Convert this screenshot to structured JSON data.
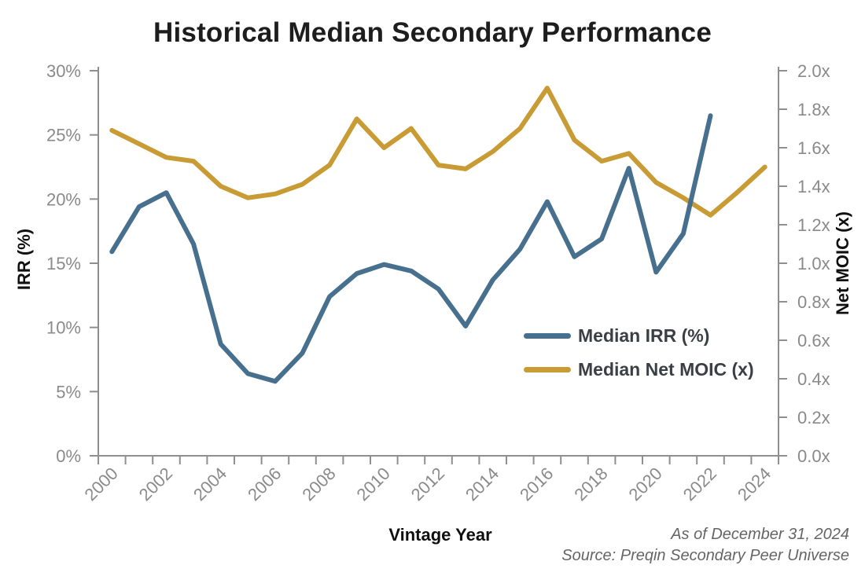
{
  "title": "Historical Median Secondary Performance",
  "colors": {
    "axis": "#8f8f8f",
    "tick_label": "#8a8a8a",
    "irr_line": "#47708e",
    "moic_line": "#c89b35"
  },
  "chart_data": {
    "type": "line",
    "title": "Historical Median Secondary Performance",
    "xlabel": "Vintage Year",
    "ylabel_left": "IRR (%)",
    "ylabel_right": "Net MOIC (x)",
    "grid": false,
    "legend_position": "inside-right",
    "x_categories": [
      "2000",
      "2001",
      "2002",
      "2003",
      "2004",
      "2005",
      "2006",
      "2007",
      "2008",
      "2009",
      "2010",
      "2011",
      "2012",
      "2013",
      "2014",
      "2015",
      "2016",
      "2017",
      "2018",
      "2019",
      "2020",
      "2021",
      "2022",
      "2023",
      "2024"
    ],
    "x_tick_labels": [
      "2000",
      "2002",
      "2004",
      "2006",
      "2008",
      "2010",
      "2012",
      "2014",
      "2016",
      "2018",
      "2020",
      "2022",
      "2024"
    ],
    "left_axis": {
      "min": 0,
      "max": 30,
      "step": 5,
      "tick_labels": [
        "0%",
        "5%",
        "10%",
        "15%",
        "20%",
        "25%",
        "30%"
      ]
    },
    "right_axis": {
      "min": 0,
      "max": 2,
      "step": 0.2,
      "tick_labels": [
        "0.0x",
        "0.2x",
        "0.4x",
        "0.6x",
        "0.8x",
        "1.0x",
        "1.2x",
        "1.4x",
        "1.6x",
        "1.8x",
        "2.0x"
      ]
    },
    "series": [
      {
        "name": "Median IRR (%)",
        "axis": "left",
        "color": "#47708e",
        "values": [
          15.9,
          19.4,
          20.5,
          16.5,
          8.7,
          6.4,
          5.8,
          8.0,
          12.4,
          14.2,
          14.9,
          14.4,
          13.0,
          10.1,
          13.7,
          16.1,
          19.8,
          15.5,
          16.9,
          22.4,
          14.3,
          17.3,
          26.5,
          null,
          null
        ]
      },
      {
        "name": "Median Net MOIC (x)",
        "axis": "right",
        "color": "#c89b35",
        "values": [
          1.69,
          1.62,
          1.55,
          1.53,
          1.4,
          1.34,
          1.36,
          1.41,
          1.51,
          1.75,
          1.6,
          1.7,
          1.51,
          1.49,
          1.58,
          1.7,
          1.91,
          1.64,
          1.53,
          1.57,
          1.42,
          1.34,
          1.25,
          1.37,
          1.5
        ]
      }
    ],
    "footnotes": [
      "As of December 31, 2024",
      "Source: Preqin Secondary Peer Universe"
    ]
  }
}
